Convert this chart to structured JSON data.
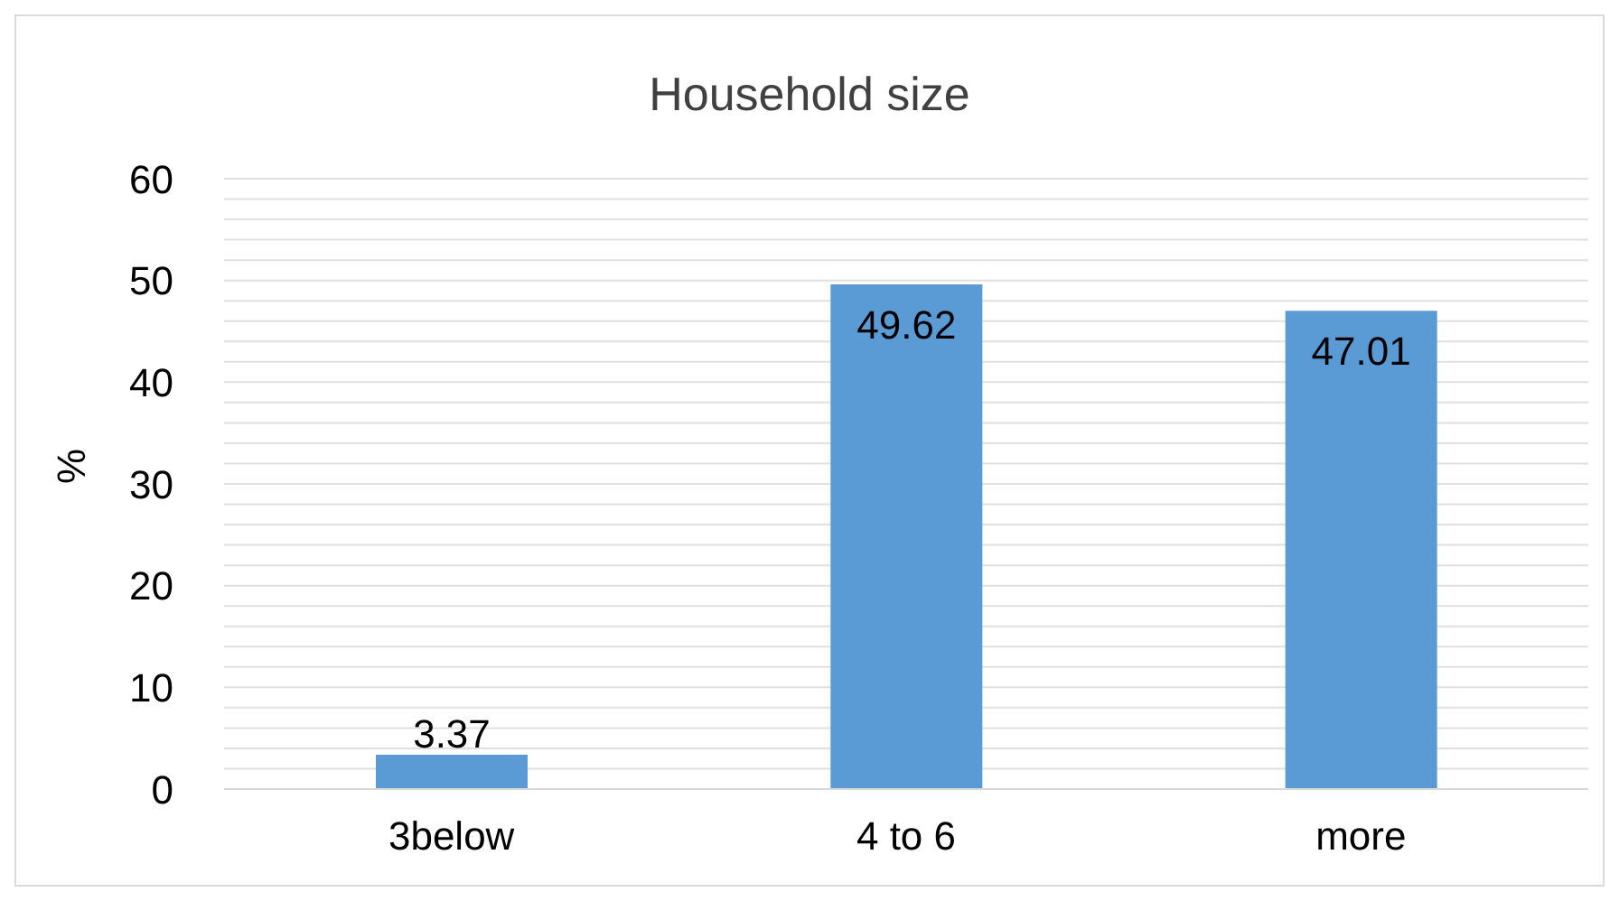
{
  "chart_data": {
    "type": "bar",
    "title": "Household size",
    "ylabel": "%",
    "categories": [
      "3below",
      "4 to 6",
      "more"
    ],
    "values": [
      3.37,
      49.62,
      47.01
    ],
    "color": "#5b9bd5",
    "ylim": [
      0,
      60
    ],
    "yticks": [
      0,
      {
        "value": 2,
        "label": null
      },
      {
        "value": 4,
        "label": null
      },
      {
        "value": 6,
        "label": null
      },
      {
        "value": 8,
        "label": null
      },
      10,
      {
        "value": 12,
        "label": null
      },
      {
        "value": 14,
        "label": null
      },
      {
        "value": 16,
        "label": null
      },
      {
        "value": 18,
        "label": null
      },
      20,
      {
        "value": 22,
        "label": null
      },
      {
        "value": 24,
        "label": null
      },
      {
        "value": 26,
        "label": null
      },
      {
        "value": 28,
        "label": null
      },
      30,
      {
        "value": 32,
        "label": null
      },
      {
        "value": 34,
        "label": null
      },
      {
        "value": 36,
        "label": null
      },
      {
        "value": 38,
        "label": null
      },
      40,
      {
        "value": 42,
        "label": null
      },
      {
        "value": 44,
        "label": null
      },
      {
        "value": 46,
        "label": null
      },
      {
        "value": 48,
        "label": null
      },
      50,
      {
        "value": 52,
        "label": null
      },
      {
        "value": 54,
        "label": null
      },
      {
        "value": 56,
        "label": null
      },
      {
        "value": 58,
        "label": null
      },
      60
    ],
    "grid": "y",
    "data_labels": true
  }
}
